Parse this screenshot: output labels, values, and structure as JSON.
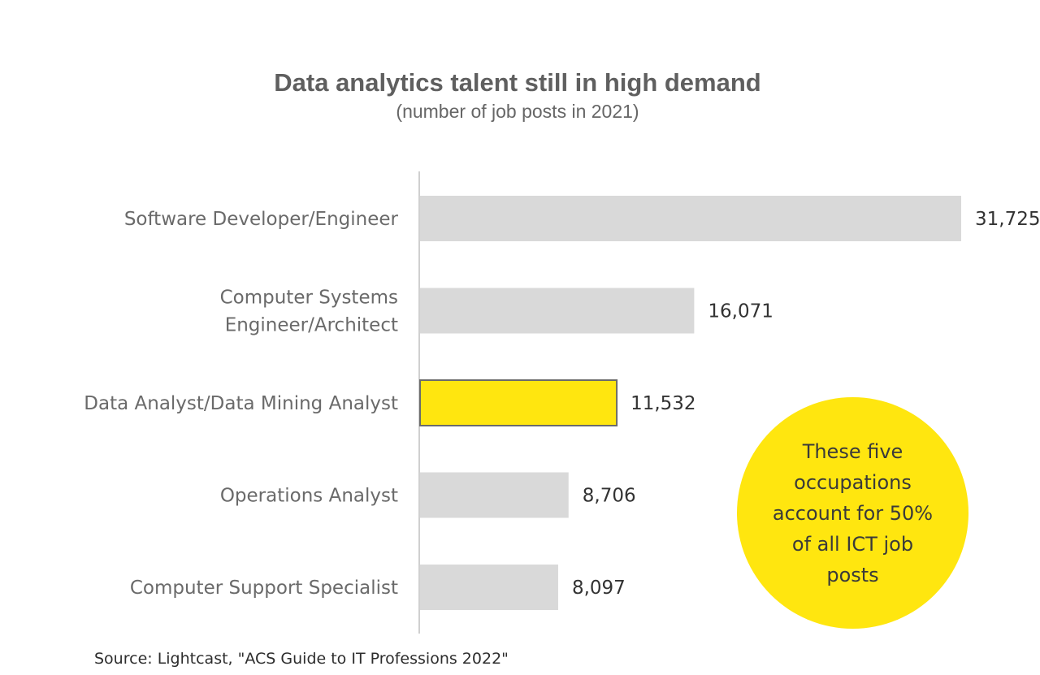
{
  "chart_data": {
    "type": "bar",
    "orientation": "horizontal",
    "title": "Data analytics talent still in high demand",
    "subtitle": "(number of job posts in 2021)",
    "categories": [
      [
        "Software Developer/Engineer"
      ],
      [
        "Computer Systems",
        "Engineer/Architect"
      ],
      [
        "Data Analyst/Data Mining Analyst"
      ],
      [
        "Operations Analyst"
      ],
      [
        "Computer Support Specialist"
      ]
    ],
    "values": [
      31725,
      16071,
      11532,
      8706,
      8097
    ],
    "value_labels": [
      "31,725",
      "16,071",
      "11,532",
      "8,706",
      "8,097"
    ],
    "highlighted_index": 2,
    "bar_color": "#d9d9d9",
    "highlight_color": "#ffe60f",
    "highlight_border_color": "#6b6b6b",
    "axis_color": "#d0d0d0",
    "xlim": [
      0,
      31725
    ],
    "grid": false,
    "legend": "none"
  },
  "callout": {
    "text": "These five occupations account for 50% of all ICT job posts",
    "color": "#ffe60f"
  },
  "source": "Source: Lightcast, \"ACS Guide to IT Professions 2022\""
}
